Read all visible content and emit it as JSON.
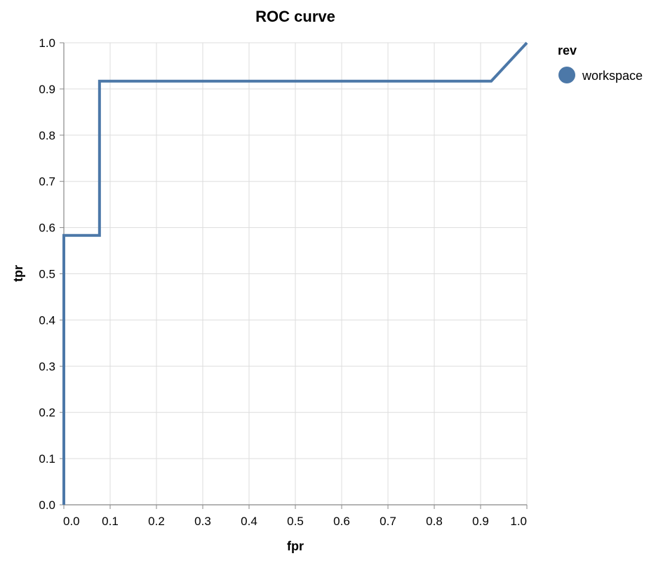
{
  "chart_data": {
    "type": "line",
    "title": "ROC curve",
    "xlabel": "fpr",
    "ylabel": "tpr",
    "xlim": [
      0,
      1
    ],
    "ylim": [
      0,
      1
    ],
    "grid": true,
    "legend_placement": "top-right",
    "legend_title": "rev",
    "x_ticks": [
      "0.0",
      "0.1",
      "0.2",
      "0.3",
      "0.4",
      "0.5",
      "0.6",
      "0.7",
      "0.8",
      "0.9",
      "1.0"
    ],
    "y_ticks": [
      "0.0",
      "0.1",
      "0.2",
      "0.3",
      "0.4",
      "0.5",
      "0.6",
      "0.7",
      "0.8",
      "0.9",
      "1.0"
    ],
    "series": [
      {
        "name": "workspace",
        "color": "#4c78a8",
        "x": [
          0,
          0,
          0.077,
          0.077,
          0.923,
          1.0
        ],
        "y": [
          0,
          0.583,
          0.583,
          0.917,
          0.917,
          1.0
        ]
      }
    ]
  }
}
